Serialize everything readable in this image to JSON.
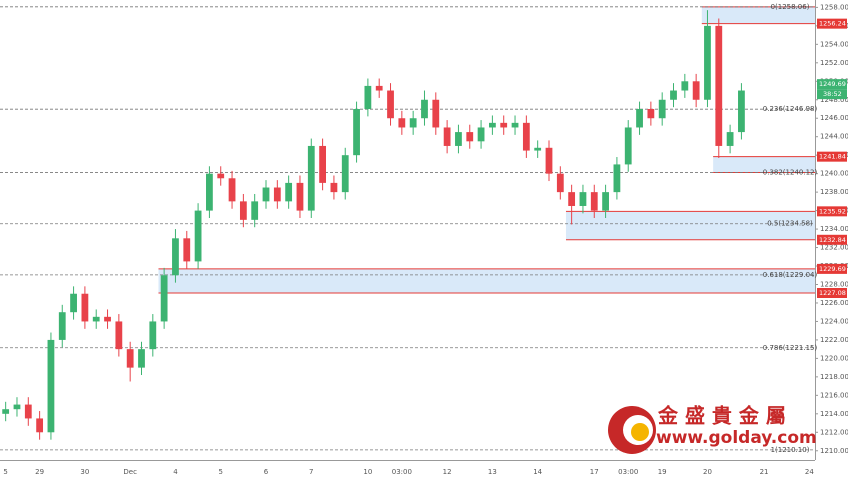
{
  "chart_data": {
    "type": "candlestick",
    "categories": [
      "5",
      null,
      null,
      "29",
      null,
      null,
      null,
      "30",
      null,
      null,
      null,
      "Dec",
      null,
      null,
      null,
      "4",
      null,
      null,
      null,
      "5",
      null,
      null,
      null,
      "6",
      null,
      null,
      null,
      "7",
      null,
      null,
      null,
      null,
      "10",
      null,
      null,
      "03:00",
      null,
      null,
      null,
      "12",
      null,
      null,
      null,
      "13",
      null,
      null,
      null,
      "14",
      null,
      null,
      null,
      null,
      "17",
      null,
      null,
      "03:00",
      null,
      null,
      "19",
      null,
      null,
      null,
      "20",
      null,
      null,
      null,
      null,
      "21",
      null,
      null,
      null,
      "24"
    ],
    "open": [
      1214,
      1214.5,
      1215,
      1213.5,
      1212,
      1222,
      1225,
      1227,
      1224,
      1224.5,
      1224,
      1221,
      1219,
      1221,
      1224,
      1229,
      1233,
      1230.5,
      1236,
      1240,
      1239.5,
      1237,
      1235,
      1237,
      1238.5,
      1237,
      1239,
      1236,
      1243,
      1239,
      1238,
      1242,
      1247,
      1249.5,
      1249,
      1246,
      1245,
      1246,
      1248,
      1245,
      1243,
      1244.5,
      1243.5,
      1245,
      1245.5,
      1245,
      1245.5,
      1242.5,
      1242.8,
      1240,
      1238,
      1236.5,
      1238,
      1236,
      1238,
      1241,
      1245,
      1247,
      1246,
      1248,
      1249,
      1250,
      1248,
      1256,
      1243,
      1244.5,
      null,
      null,
      null,
      null,
      null,
      null
    ],
    "high": [
      1215.3,
      1215.8,
      1215.8,
      1214.3,
      1222.8,
      1225.8,
      1227.8,
      1227.8,
      1225.3,
      1225.3,
      1224.8,
      1221.8,
      1221.8,
      1224.8,
      1229.8,
      1234,
      1233.8,
      1236.8,
      1240.8,
      1240.8,
      1240.3,
      1237.8,
      1237.8,
      1239.3,
      1239.3,
      1239.8,
      1239.8,
      1243.8,
      1243.8,
      1239.8,
      1242.8,
      1247.8,
      1250.3,
      1250.3,
      1249.8,
      1246.8,
      1246.8,
      1249,
      1248.8,
      1245.8,
      1245.3,
      1245.3,
      1245.8,
      1246.3,
      1246.3,
      1246.3,
      1246.3,
      1243.6,
      1243.6,
      1240.8,
      1238.8,
      1238.8,
      1238.8,
      1238.8,
      1241.8,
      1245.8,
      1247.8,
      1247.8,
      1248.8,
      1249.8,
      1250.8,
      1250.8,
      1257.7,
      1256.8,
      1245.3,
      1249.8,
      null,
      null,
      null,
      null,
      null,
      null
    ],
    "low": [
      1213.2,
      1213.7,
      1212.7,
      1211.2,
      1211.2,
      1221.2,
      1224.2,
      1223.2,
      1223.2,
      1223.2,
      1220.2,
      1217.5,
      1218.2,
      1220.2,
      1223.2,
      1228.2,
      1229.7,
      1229.7,
      1235.2,
      1238.7,
      1236.2,
      1234.2,
      1234.2,
      1236.2,
      1236.2,
      1236.2,
      1235.2,
      1235.2,
      1238.2,
      1237.2,
      1237.2,
      1241.2,
      1246.2,
      1248.2,
      1245.2,
      1244.2,
      1244.2,
      1245.2,
      1244.2,
      1242.2,
      1242.2,
      1242.7,
      1242.7,
      1244.2,
      1244.2,
      1244.2,
      1241.7,
      1241.7,
      1239.2,
      1237.2,
      1234.5,
      1235.7,
      1235.2,
      1235.2,
      1237.2,
      1240.2,
      1244.2,
      1245.2,
      1245.2,
      1247.2,
      1248.2,
      1247.2,
      1247.2,
      1241.7,
      1242.2,
      1243.7,
      null,
      null,
      null,
      null,
      null,
      null
    ],
    "close": [
      1214.5,
      1215,
      1213.5,
      1212,
      1222,
      1225,
      1227,
      1224,
      1224.5,
      1224,
      1221,
      1219,
      1221,
      1224,
      1229,
      1233,
      1230.5,
      1236,
      1240,
      1239.5,
      1237,
      1235,
      1237,
      1238.5,
      1237,
      1239,
      1236,
      1243,
      1239,
      1238,
      1242,
      1247,
      1249.5,
      1249,
      1246,
      1245,
      1246,
      1248,
      1245,
      1243,
      1244.5,
      1243.5,
      1245,
      1245.5,
      1245,
      1245.5,
      1242.5,
      1242.8,
      1240,
      1238,
      1236.5,
      1238,
      1236,
      1238,
      1241,
      1245,
      1247,
      1246,
      1248,
      1249,
      1250,
      1248,
      1256,
      1243,
      1244.5,
      1249,
      null,
      null,
      null,
      null,
      null,
      null
    ],
    "up_color": "#3cb371",
    "down_color": "#e8424a",
    "ylim": [
      1209,
      1258.8
    ],
    "yticks": [
      {
        "value": 1210,
        "label": "1210.00"
      },
      {
        "value": 1212,
        "label": "1212.00"
      },
      {
        "value": 1214,
        "label": "1214.00"
      },
      {
        "value": 1216,
        "label": "1216.00"
      },
      {
        "value": 1218,
        "label": "1218.00"
      },
      {
        "value": 1220,
        "label": "1220.00"
      },
      {
        "value": 1222,
        "label": "1222.00"
      },
      {
        "value": 1224,
        "label": "1224.00"
      },
      {
        "value": 1226,
        "label": "1226.00"
      },
      {
        "value": 1228,
        "label": "1228.00"
      },
      {
        "value": 1230,
        "label": "1230.00"
      },
      {
        "value": 1232,
        "label": "1232.00"
      },
      {
        "value": 1234,
        "label": "1234.00"
      },
      {
        "value": 1236,
        "label": "1236.00"
      },
      {
        "value": 1238,
        "label": "1238.00"
      },
      {
        "value": 1240,
        "label": "1240.00"
      },
      {
        "value": 1242,
        "label": "1242.00"
      },
      {
        "value": 1244,
        "label": "1244.00"
      },
      {
        "value": 1246,
        "label": "1246.00"
      },
      {
        "value": 1248,
        "label": "1248.00"
      },
      {
        "value": 1250,
        "label": "1250.00"
      },
      {
        "value": 1252,
        "label": "1252.00"
      },
      {
        "value": 1254,
        "label": "1254.00"
      },
      {
        "value": 1256,
        "label": "1256.00"
      },
      {
        "value": 1258,
        "label": "1258.00"
      }
    ],
    "fib_levels": [
      {
        "value": 1258.06,
        "label": "0(1258.06)"
      },
      {
        "value": 1246.98,
        "label": "0.236(1246.98)"
      },
      {
        "value": 1240.12,
        "label": "0.382(1240.12)"
      },
      {
        "value": 1234.58,
        "label": "0.5(1234.58)"
      },
      {
        "value": 1229.04,
        "label": "0.618(1229.04)"
      },
      {
        "value": 1221.15,
        "label": "0.786(1221.15)"
      },
      {
        "value": 1210.1,
        "label": "1(1210.10)"
      }
    ],
    "zones": [
      {
        "from": 62,
        "top": 1258.06,
        "bottom": 1256.24
      },
      {
        "from": 63,
        "top": 1241.84,
        "bottom": 1240.12
      },
      {
        "from": 50,
        "top": 1235.92,
        "bottom": 1232.84
      },
      {
        "from": 14,
        "top": 1229.69,
        "bottom": 1227.08
      }
    ],
    "zone_color": "#cfe3f7",
    "zone_line_color": "#e53935",
    "price_tags": [
      {
        "value": 1256.24,
        "label": "1256.24",
        "color": "#e53935"
      },
      {
        "value": 1249.69,
        "label": "1249.69",
        "color": "#3cb371"
      },
      {
        "value": 1241.84,
        "label": "1241.84",
        "color": "#e53935"
      },
      {
        "value": 1235.92,
        "label": "1235.92",
        "color": "#e53935"
      },
      {
        "value": 1232.84,
        "label": "1232.84",
        "color": "#e53935"
      },
      {
        "value": 1229.69,
        "label": "1229.69",
        "color": "#e53935"
      },
      {
        "value": 1227.08,
        "label": "1227.08",
        "color": "#e53935"
      }
    ],
    "countdown": "38:52"
  },
  "watermark": {
    "name": "金 盛 貴 金 屬",
    "url": "www.golday.com"
  }
}
